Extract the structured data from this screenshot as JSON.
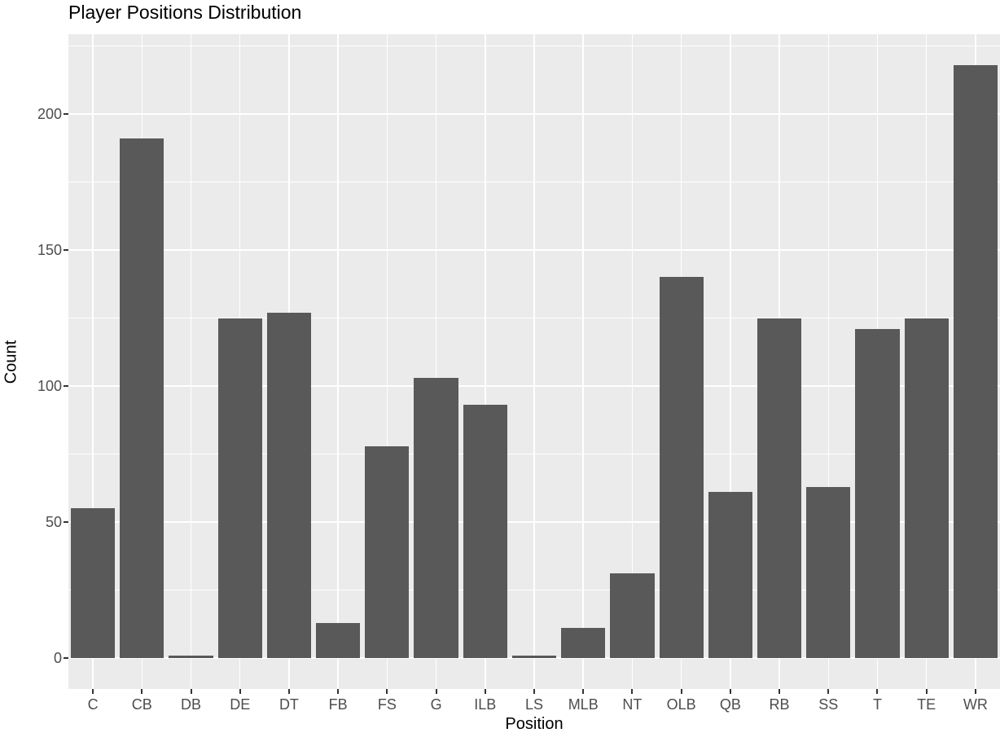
{
  "title": "Player Positions Distribution",
  "chart_data": {
    "type": "bar",
    "title": "Player Positions Distribution",
    "xlabel": "Position",
    "ylabel": "Count",
    "categories": [
      "C",
      "CB",
      "DB",
      "DE",
      "DT",
      "FB",
      "FS",
      "G",
      "ILB",
      "LS",
      "MLB",
      "NT",
      "OLB",
      "QB",
      "RB",
      "SS",
      "T",
      "TE",
      "WR"
    ],
    "values": [
      55,
      191,
      1,
      125,
      127,
      13,
      78,
      103,
      93,
      1,
      11,
      31,
      140,
      61,
      125,
      63,
      121,
      125,
      218
    ],
    "yticks": [
      0,
      50,
      100,
      150,
      200
    ],
    "yminorticks": [
      25,
      75,
      125,
      175,
      225
    ],
    "ylim": [
      0,
      218
    ],
    "y_expansion": 0.05,
    "grid": "on",
    "legend": "none",
    "bar_color": "#595959",
    "panel_background": "#EBEBEB",
    "gridline_color": "#FFFFFF",
    "tick_label_color": "#4D4D4D",
    "text_color": "#000000"
  }
}
